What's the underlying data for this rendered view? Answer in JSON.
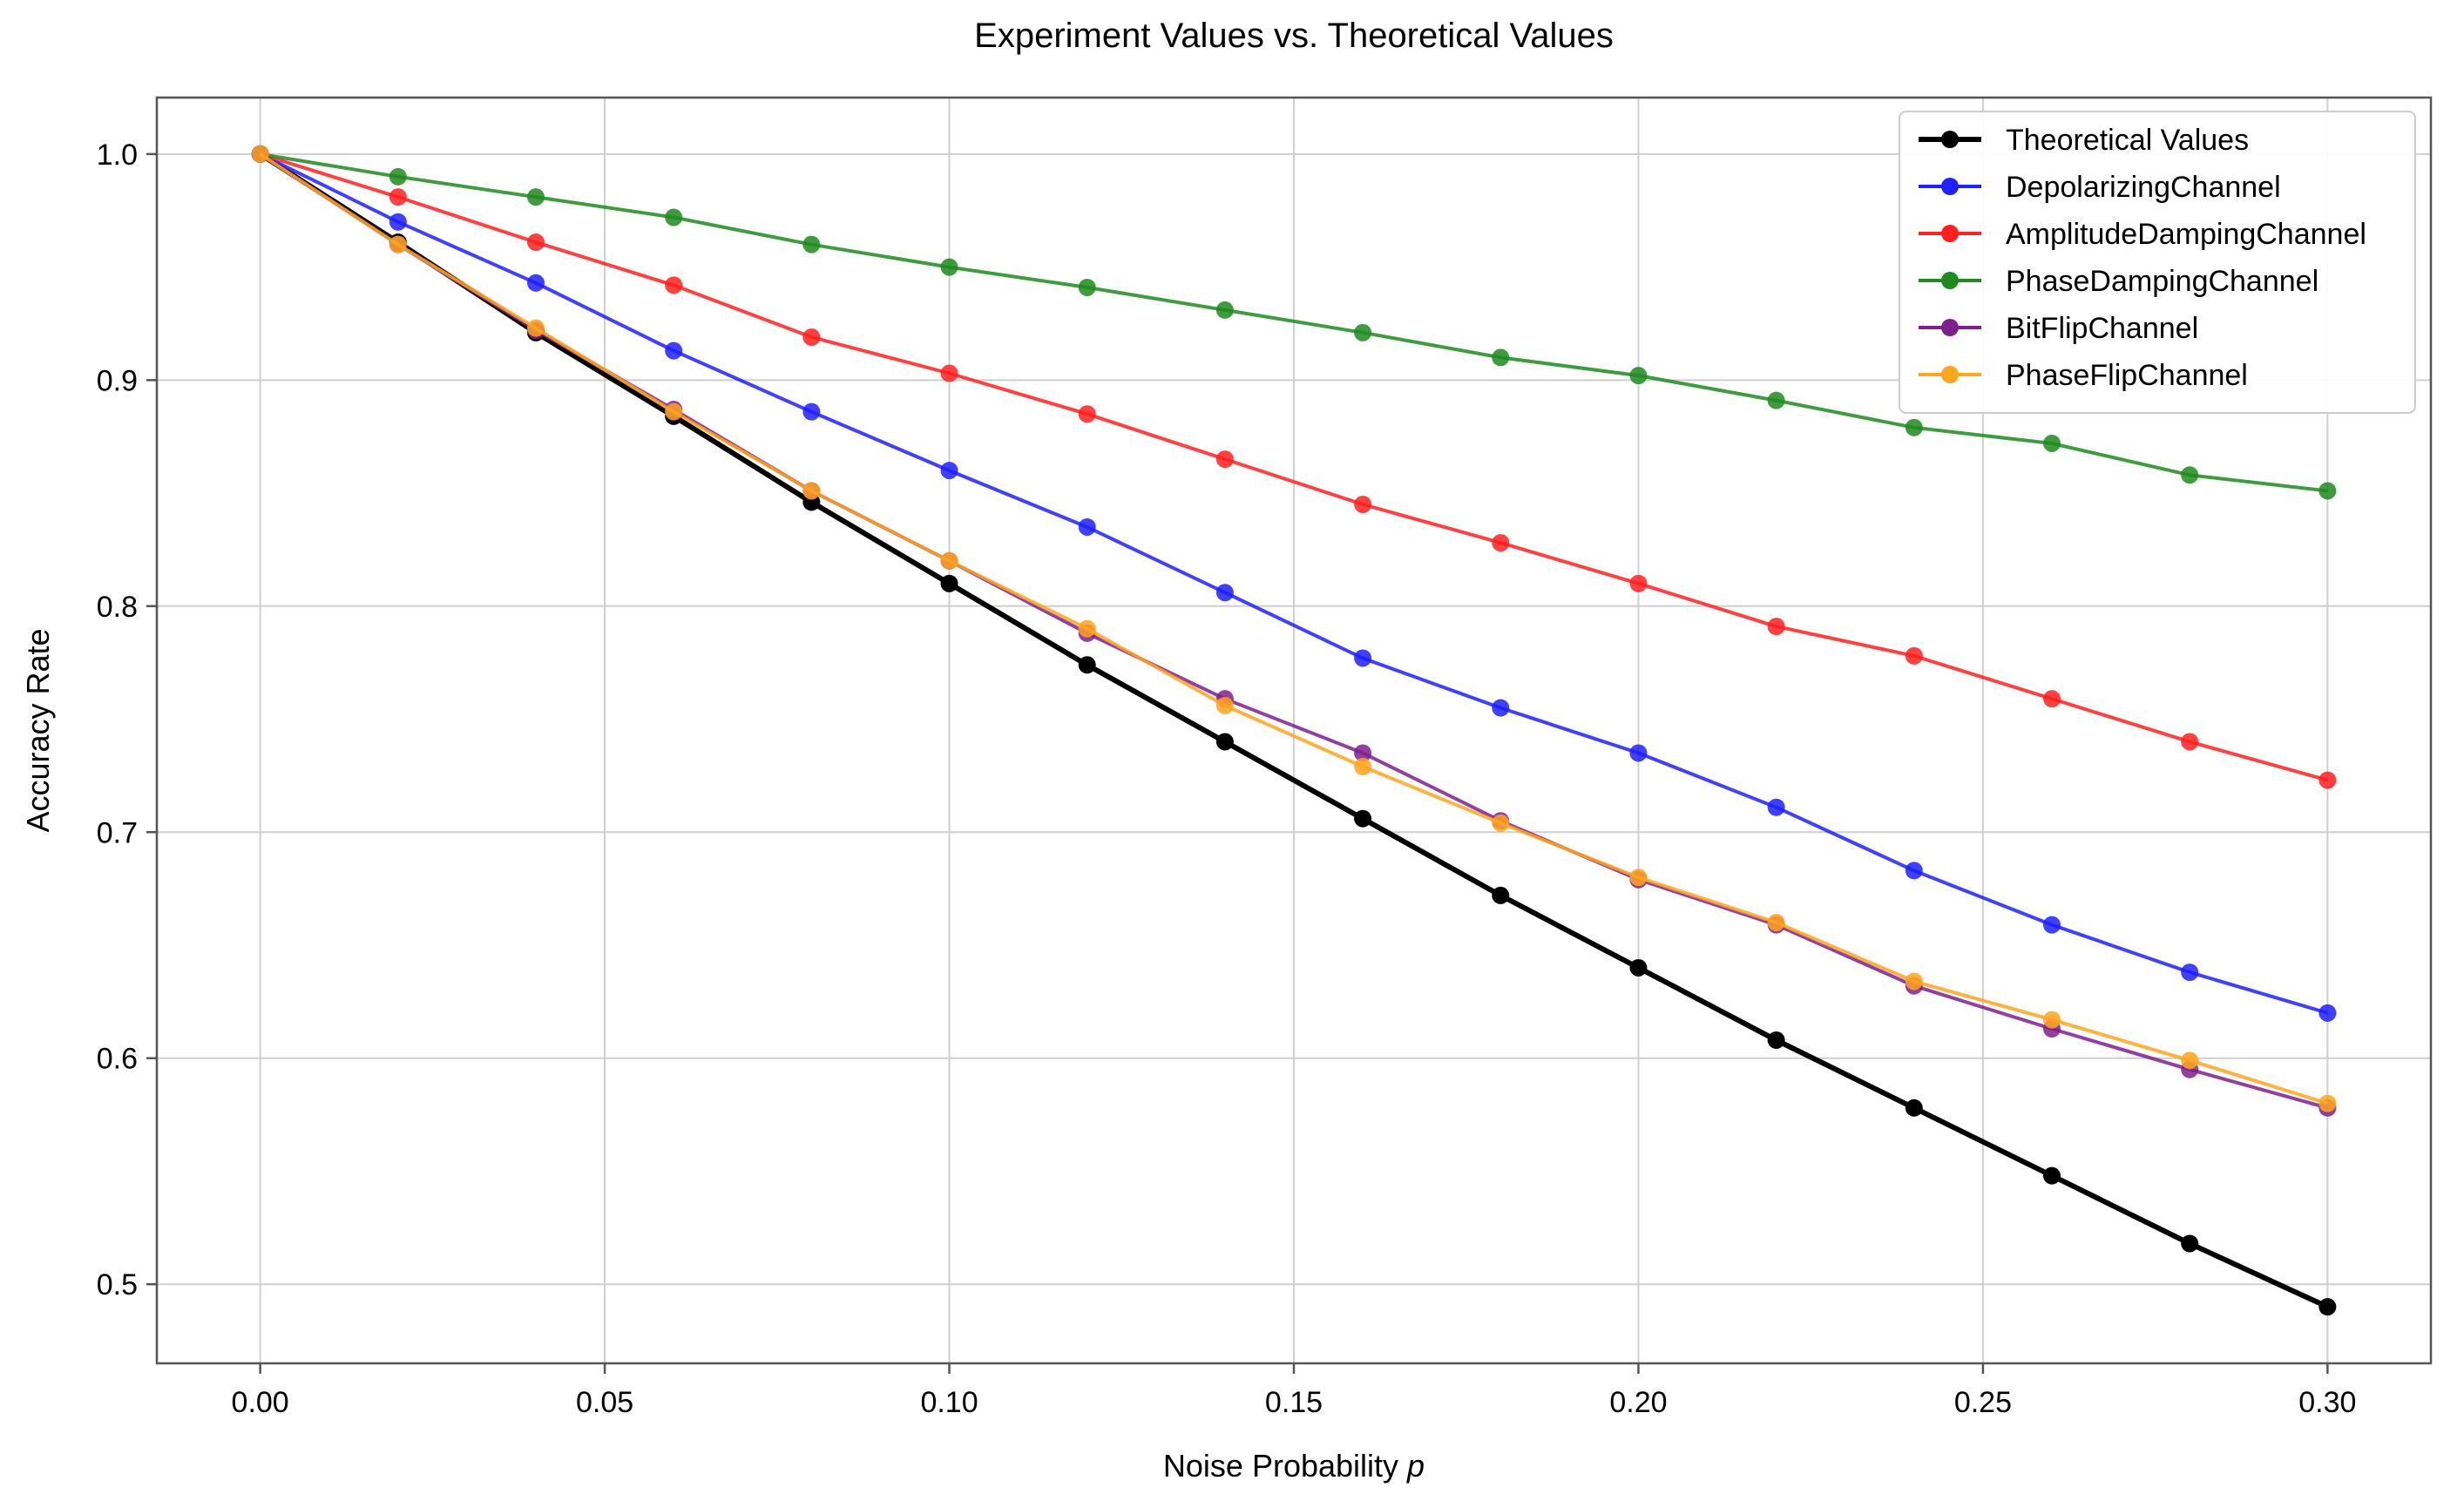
{
  "chart_data": {
    "type": "line",
    "title": "Experiment Values vs. Theoretical Values",
    "xlabel": "Noise Probability",
    "xlabel_var": "p",
    "ylabel": "Accuracy Rate",
    "xlim": [
      -0.015,
      0.315
    ],
    "ylim": [
      0.465,
      1.025
    ],
    "grid": true,
    "legend_position": "top-right",
    "x": [
      0.0,
      0.02,
      0.04,
      0.06,
      0.08,
      0.1,
      0.12,
      0.14,
      0.16,
      0.18,
      0.2,
      0.22,
      0.24,
      0.26,
      0.28,
      0.3
    ],
    "x_ticks": [
      0.0,
      0.05,
      0.1,
      0.15,
      0.2,
      0.25,
      0.3
    ],
    "x_tick_labels": [
      "0.00",
      "0.05",
      "0.10",
      "0.15",
      "0.20",
      "0.25",
      "0.30"
    ],
    "y_ticks": [
      0.5,
      0.6,
      0.7,
      0.8,
      0.9,
      1.0
    ],
    "y_tick_labels": [
      "0.5",
      "0.6",
      "0.7",
      "0.8",
      "0.9",
      "1.0"
    ],
    "series": [
      {
        "name": "Theoretical Values",
        "color": "#000000",
        "emphasis": true,
        "values": [
          1.0,
          0.961,
          0.921,
          0.884,
          0.846,
          0.81,
          0.774,
          0.74,
          0.706,
          0.672,
          0.64,
          0.608,
          0.578,
          0.548,
          0.518,
          0.49
        ]
      },
      {
        "name": "DepolarizingChannel",
        "color": "#1f1fff",
        "emphasis": false,
        "values": [
          1.0,
          0.97,
          0.943,
          0.913,
          0.886,
          0.86,
          0.835,
          0.806,
          0.777,
          0.755,
          0.735,
          0.711,
          0.683,
          0.659,
          0.638,
          0.62
        ]
      },
      {
        "name": "AmplitudeDampingChannel",
        "color": "#ff2020",
        "emphasis": false,
        "values": [
          1.0,
          0.981,
          0.961,
          0.942,
          0.919,
          0.903,
          0.885,
          0.865,
          0.845,
          0.828,
          0.81,
          0.791,
          0.778,
          0.759,
          0.74,
          0.723
        ]
      },
      {
        "name": "PhaseDampingChannel",
        "color": "#1f8a1f",
        "emphasis": false,
        "values": [
          1.0,
          0.99,
          0.981,
          0.972,
          0.96,
          0.95,
          0.941,
          0.931,
          0.921,
          0.91,
          0.902,
          0.891,
          0.879,
          0.872,
          0.858,
          0.851
        ]
      },
      {
        "name": "BitFlipChannel",
        "color": "#7f1f8f",
        "emphasis": false,
        "values": [
          1.0,
          0.96,
          0.922,
          0.887,
          0.851,
          0.82,
          0.788,
          0.759,
          0.735,
          0.705,
          0.679,
          0.659,
          0.632,
          0.613,
          0.595,
          0.578
        ]
      },
      {
        "name": "PhaseFlipChannel",
        "color": "#ffa51f",
        "emphasis": false,
        "values": [
          1.0,
          0.96,
          0.923,
          0.886,
          0.851,
          0.82,
          0.79,
          0.756,
          0.729,
          0.704,
          0.68,
          0.66,
          0.634,
          0.617,
          0.599,
          0.58
        ]
      }
    ]
  }
}
